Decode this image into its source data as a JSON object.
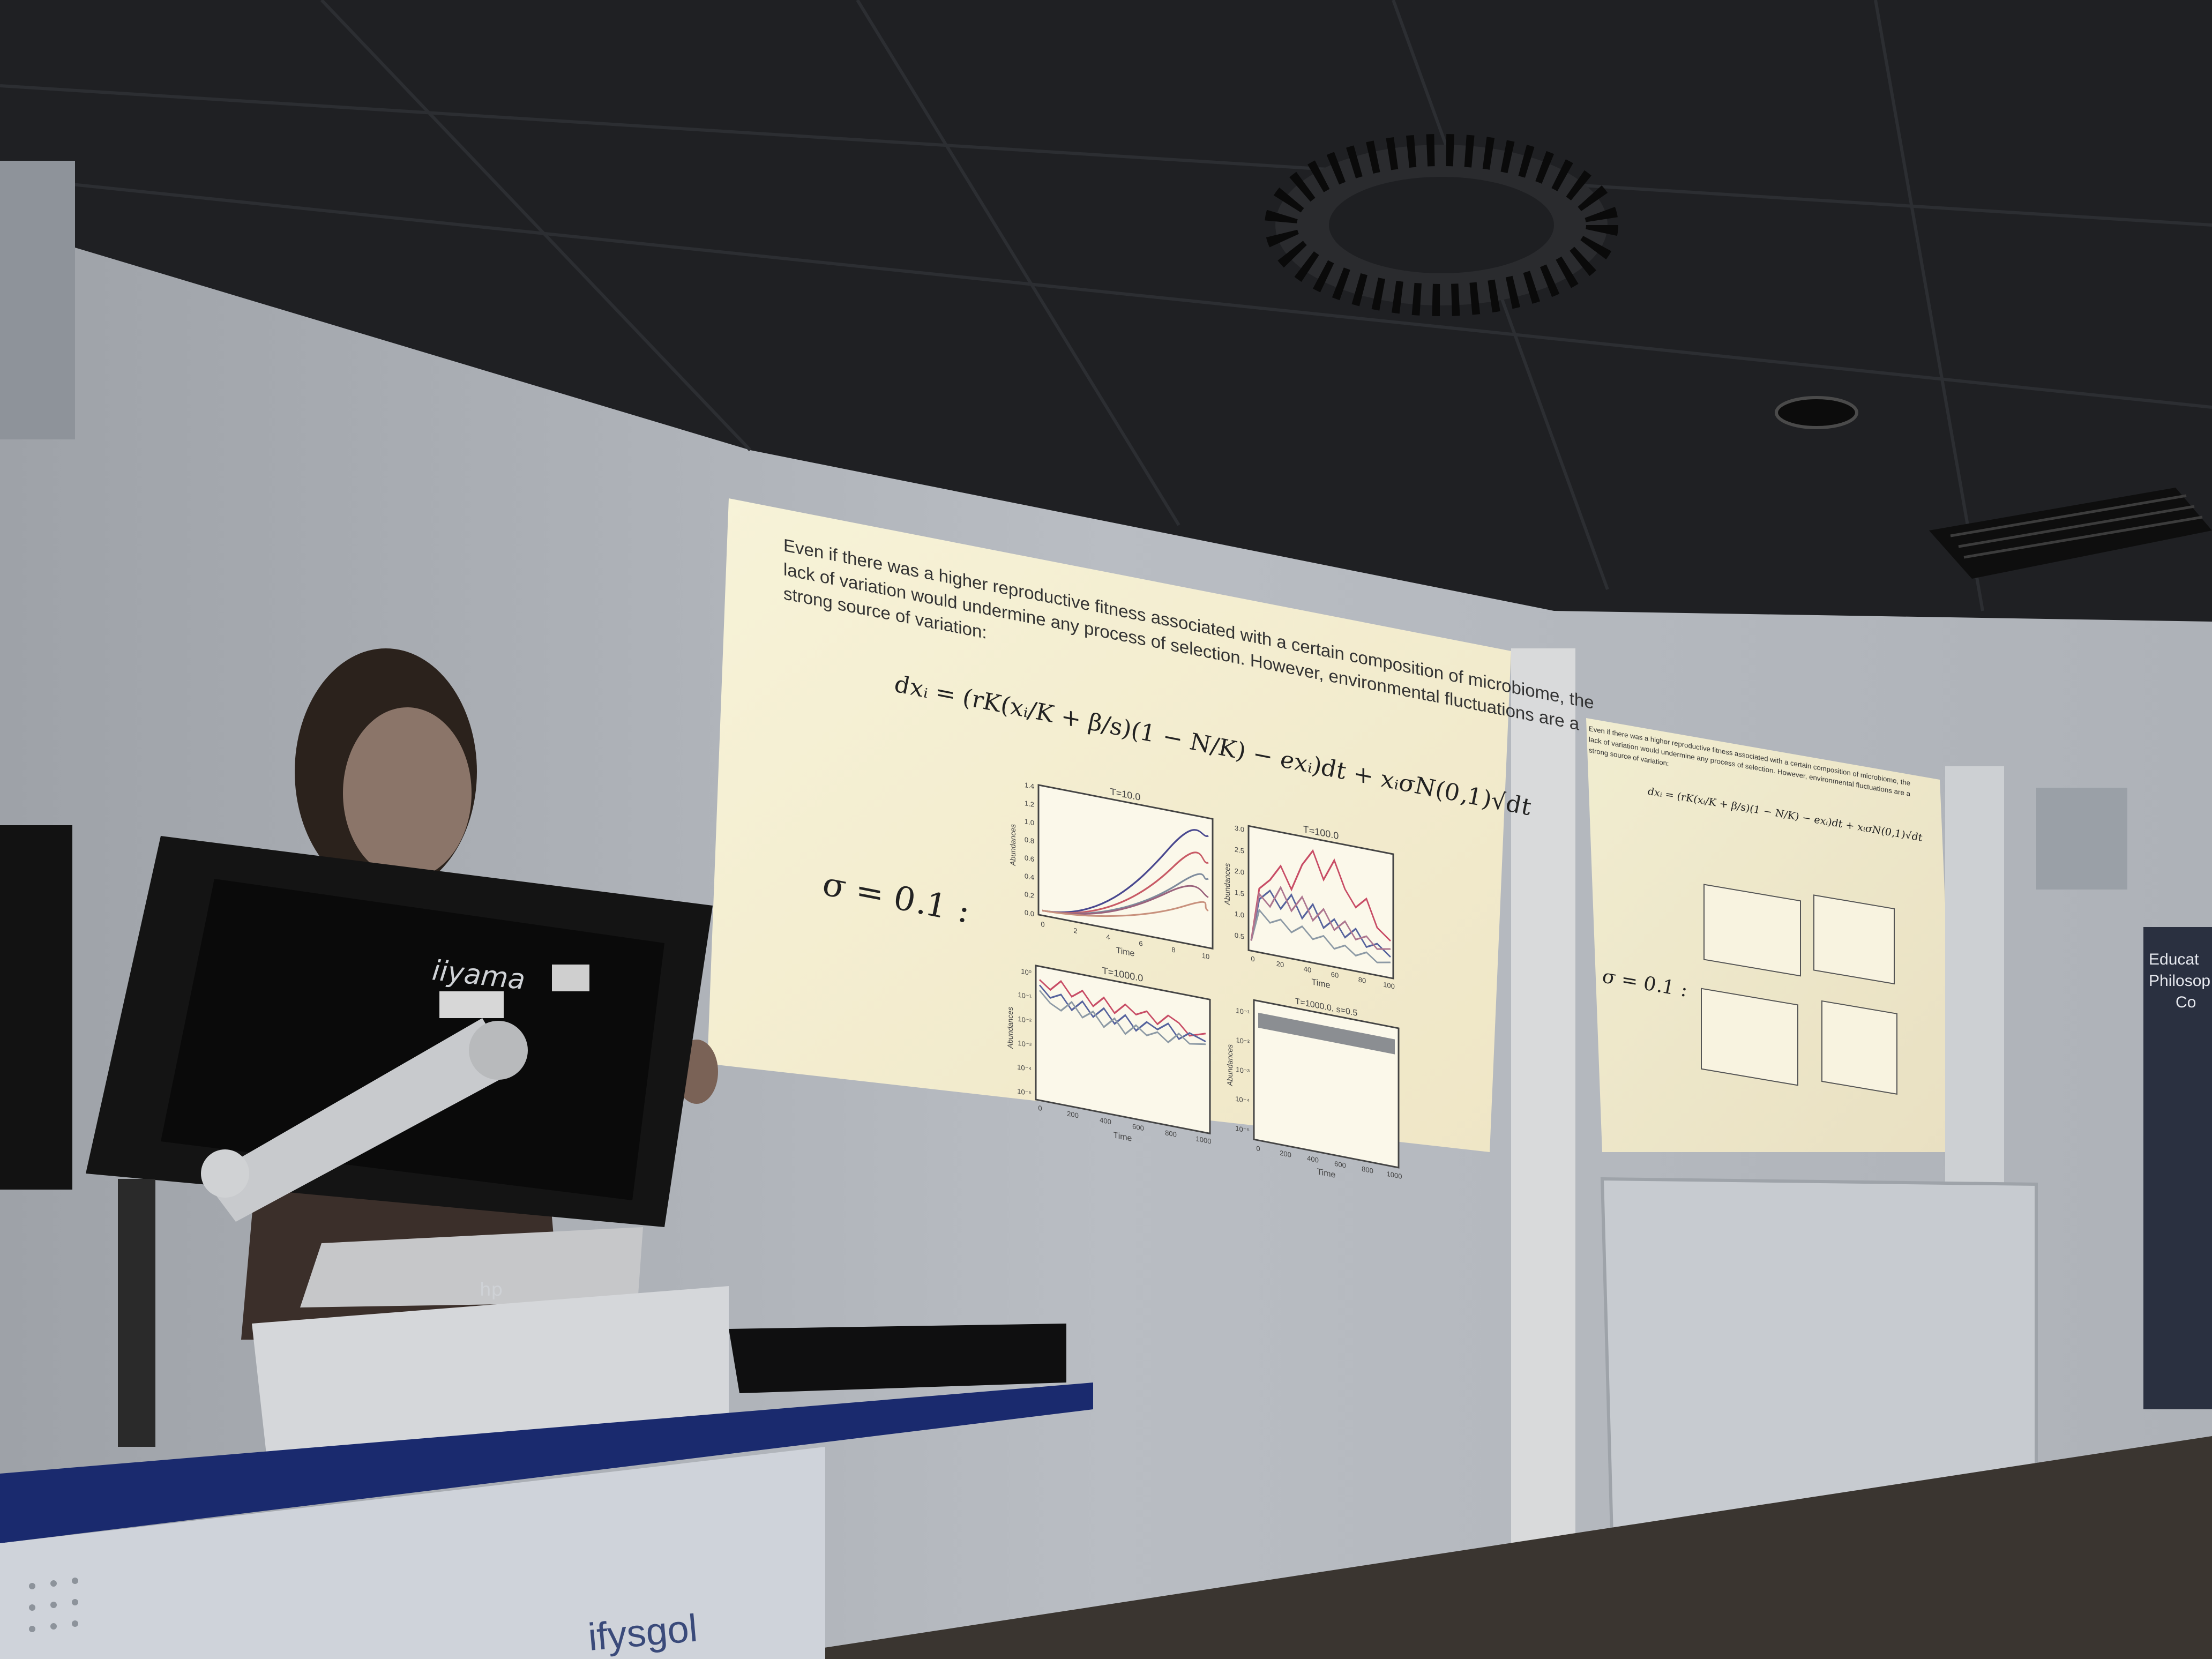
{
  "slide": {
    "paragraph_lines": [
      "Even if there was a higher reproductive fitness associated with a certain composition of microbiome, the",
      "lack of variation would undermine any process of selection. However, environmental fluctuations are a",
      "strong source of variation:"
    ],
    "equation": "dxᵢ = (rK(xᵢ/K + β/s)(1 − N/K) − exᵢ)dt + xᵢσN(0,1)√dt",
    "sigma_label": "σ = 0.1 :",
    "plots": [
      {
        "title": "T=10.0",
        "ylabel": "Abundances",
        "xlabel": "Time",
        "yticks": [
          "1.4",
          "1.2",
          "1.0",
          "0.8",
          "0.6",
          "0.4",
          "0.2",
          "0.0"
        ],
        "xticks": [
          "0",
          "2",
          "4",
          "6",
          "8",
          "10"
        ]
      },
      {
        "title": "T=100.0",
        "ylabel": "Abundances",
        "xlabel": "Time",
        "yticks": [
          "3.0",
          "2.5",
          "2.0",
          "1.5",
          "1.0",
          "0.5"
        ],
        "xticks": [
          "0",
          "20",
          "40",
          "60",
          "80",
          "100"
        ]
      },
      {
        "title": "T=1000.0",
        "ylabel": "Abundances",
        "xlabel": "Time",
        "yticks": [
          "10⁰",
          "10⁻¹",
          "10⁻²",
          "10⁻³",
          "10⁻⁴",
          "10⁻⁵"
        ],
        "xticks": [
          "0",
          "200",
          "400",
          "600",
          "800",
          "1000"
        ]
      },
      {
        "title": "T=1000.0, s=0.5",
        "ylabel": "Abundances",
        "xlabel": "Time",
        "yticks": [
          "10⁻¹",
          "10⁻²",
          "10⁻³",
          "10⁻⁴",
          "10⁻⁵"
        ],
        "xticks": [
          "0",
          "200",
          "400",
          "600",
          "800",
          "1000"
        ]
      }
    ]
  },
  "monitor_brand": "iiyama",
  "laptop_brand": "hp",
  "banner_lines": [
    "Educat",
    "Philosop",
    "Co"
  ],
  "podium_text": "ifysgol",
  "colors": {
    "slide_bg": "#f6f1d2",
    "ceiling": "#1e1f22",
    "wall": "#b7bcc3",
    "monitor": "#151515",
    "podium_stripe": "#203880"
  }
}
